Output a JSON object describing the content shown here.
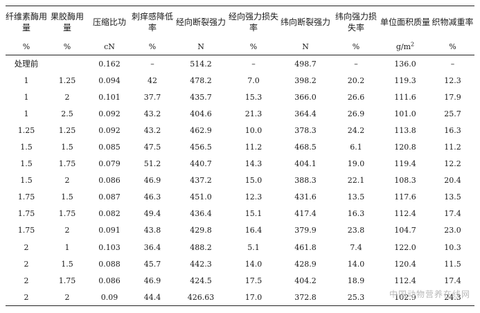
{
  "table": {
    "columns": [
      {
        "label": "纤维素酶用量",
        "unit": "%"
      },
      {
        "label": "果胶酶用量",
        "unit": "%"
      },
      {
        "label": "压缩比功",
        "unit": "cN"
      },
      {
        "label": "刺痒感降低率",
        "unit": "%"
      },
      {
        "label": "经向断裂强力",
        "unit": "N"
      },
      {
        "label": "经向强力损失率",
        "unit": "%"
      },
      {
        "label": "纬向断裂强力",
        "unit": "N"
      },
      {
        "label": "纬向强力损失率",
        "unit": "%"
      },
      {
        "label": "单位面积质量",
        "unit": "g/m",
        "unit_sup": "2"
      },
      {
        "label": "织物减重率",
        "unit": "%"
      }
    ],
    "rows": [
      [
        "处理前",
        "",
        "0.162",
        "–",
        "514.2",
        "–",
        "498.7",
        "–",
        "136.0",
        "–"
      ],
      [
        "1",
        "1.25",
        "0.094",
        "42",
        "478.2",
        "7.0",
        "398.2",
        "20.2",
        "119.3",
        "12.3"
      ],
      [
        "1",
        "2",
        "0.101",
        "37.7",
        "435.7",
        "15.3",
        "366.0",
        "26.6",
        "111.6",
        "17.9"
      ],
      [
        "1",
        "2.5",
        "0.092",
        "43.2",
        "404.6",
        "21.3",
        "364.4",
        "26.9",
        "101.0",
        "25.7"
      ],
      [
        "1.25",
        "1.25",
        "0.092",
        "43.2",
        "462.9",
        "10.0",
        "378.3",
        "24.2",
        "113.8",
        "16.3"
      ],
      [
        "1.5",
        "1.5",
        "0.085",
        "47.5",
        "456.5",
        "11.2",
        "468.5",
        "6.1",
        "120.8",
        "11.2"
      ],
      [
        "1.5",
        "1.75",
        "0.079",
        "51.2",
        "440.7",
        "14.3",
        "404.1",
        "19.0",
        "119.4",
        "12.2"
      ],
      [
        "1.5",
        "2",
        "0.086",
        "46.9",
        "437.2",
        "15.0",
        "388.3",
        "22.1",
        "108.3",
        "20.4"
      ],
      [
        "1.75",
        "1.5",
        "0.087",
        "46.3",
        "451.0",
        "12.3",
        "431.6",
        "13.5",
        "117.6",
        "13.5"
      ],
      [
        "1.75",
        "1.75",
        "0.082",
        "49.4",
        "436.4",
        "15.1",
        "417.4",
        "16.3",
        "112.4",
        "17.4"
      ],
      [
        "1.75",
        "2",
        "0.091",
        "43.8",
        "429.8",
        "16.4",
        "379.9",
        "23.8",
        "104.7",
        "23.0"
      ],
      [
        "2",
        "1",
        "0.103",
        "36.4",
        "488.2",
        "5.1",
        "461.8",
        "7.4",
        "122.0",
        "10.3"
      ],
      [
        "2",
        "1.5",
        "0.088",
        "45.7",
        "442.3",
        "14.0",
        "428.9",
        "14.0",
        "120.4",
        "11.5"
      ],
      [
        "2",
        "1.75",
        "0.086",
        "46.9",
        "424.5",
        "17.5",
        "404.2",
        "18.9",
        "112.4",
        "17.4"
      ],
      [
        "2",
        "2",
        "0.09",
        "44.4",
        "426.63",
        "17.0",
        "372.8",
        "25.3",
        "102.9",
        "24.3"
      ]
    ]
  },
  "watermark": "中国动物营养在线网"
}
